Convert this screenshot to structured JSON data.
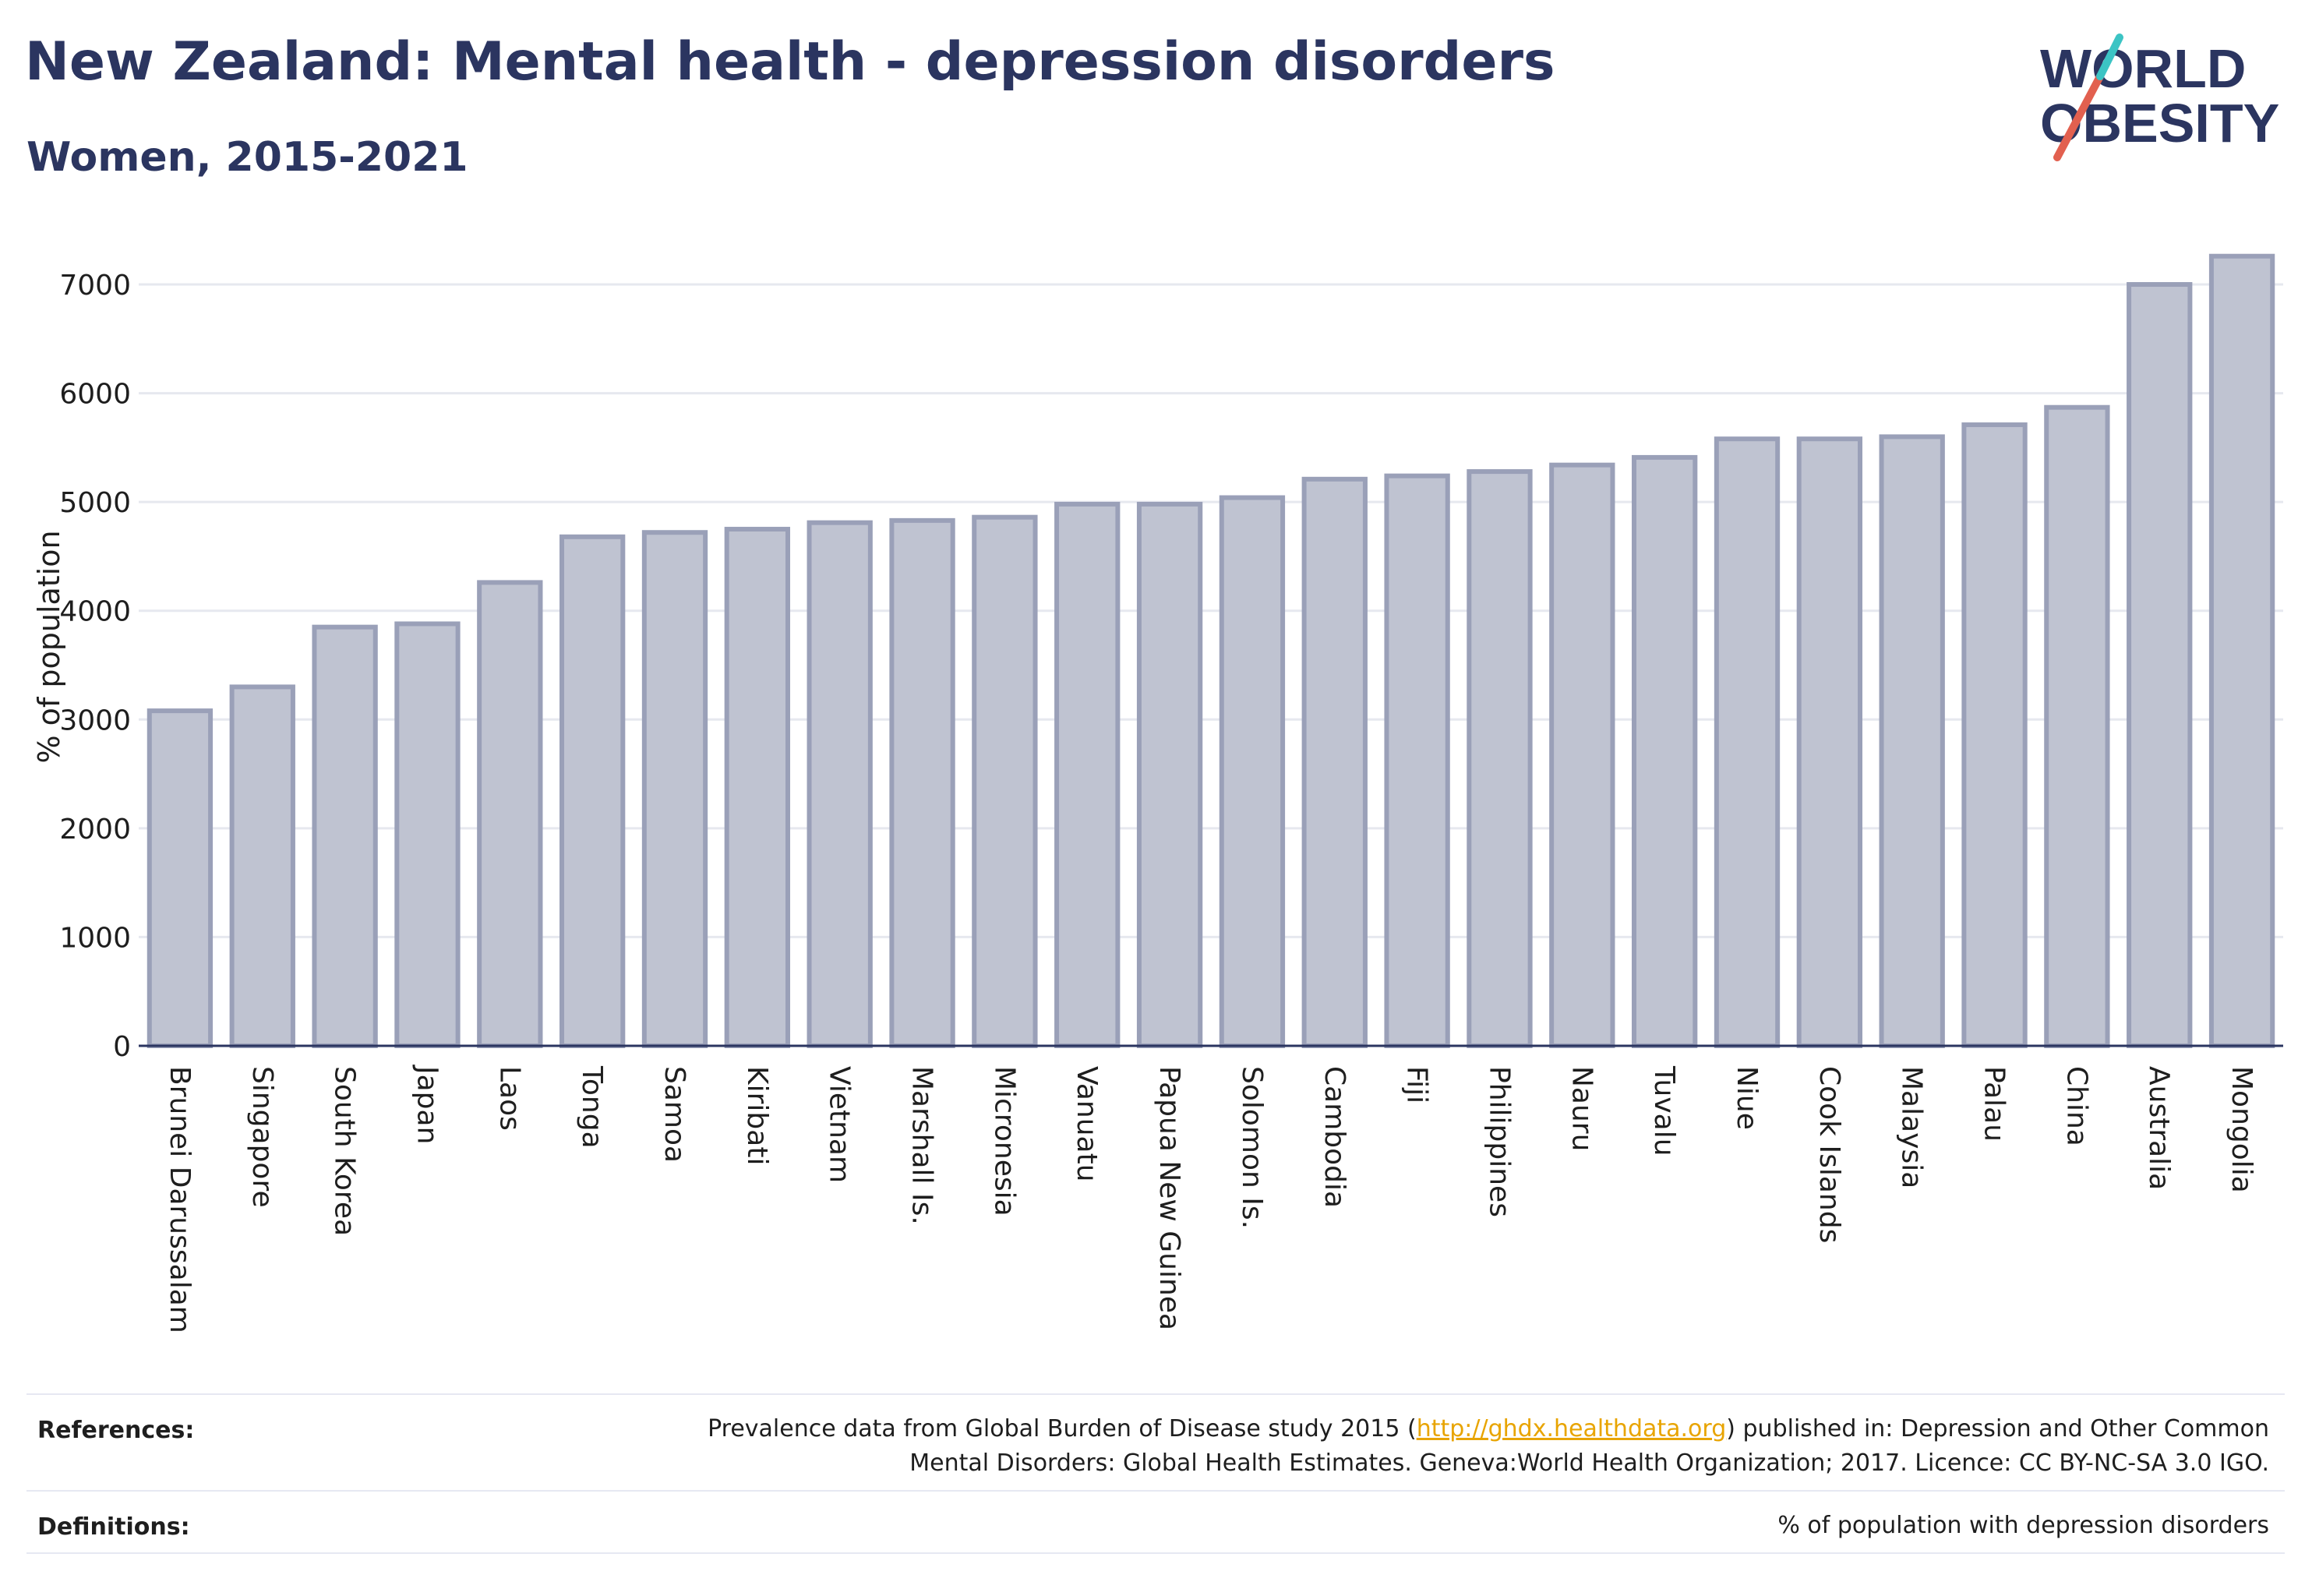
{
  "header": {
    "title": "New Zealand: Mental health - depression disorders",
    "subtitle": "Women, 2015-2021"
  },
  "logo": {
    "line1": "WORLD",
    "line2": "OBESITY",
    "colors": {
      "text": "#2b3560",
      "slash_red": "#e2604f",
      "slash_teal": "#3cc4c4"
    }
  },
  "chart_data": {
    "type": "bar",
    "title": "",
    "xlabel": "",
    "ylabel": "% of population",
    "ylim": [
      0,
      7300
    ],
    "yticks": [
      0,
      1000,
      2000,
      3000,
      4000,
      5000,
      6000,
      7000
    ],
    "grid": true,
    "categories": [
      "Brunei Darussalam",
      "Singapore",
      "South Korea",
      "Japan",
      "Laos",
      "Tonga",
      "Samoa",
      "Kiribati",
      "Vietnam",
      "Marshall Is.",
      "Micronesia",
      "Vanuatu",
      "Papua New Guinea",
      "Solomon Is.",
      "Cambodia",
      "Fiji",
      "Philippines",
      "Nauru",
      "Tuvalu",
      "Niue",
      "Cook Islands",
      "Malaysia",
      "Palau",
      "China",
      "Australia",
      "Mongolia"
    ],
    "values": [
      3080,
      3300,
      3850,
      3880,
      4260,
      4680,
      4720,
      4750,
      4810,
      4830,
      4860,
      4980,
      4980,
      5040,
      5210,
      5240,
      5280,
      5340,
      5410,
      5580,
      5580,
      5600,
      5710,
      5870,
      7000,
      7260
    ],
    "colors": {
      "bar_fill": "#bfc3d1",
      "bar_stroke": "#9aa0b8",
      "grid": "#e6e8ef",
      "axis": "#2b3560",
      "text": "#1e1e1e"
    }
  },
  "footer": {
    "references_label": "References:",
    "references_line1_pre": "Prevalence data from Global Burden of Disease study 2015 (",
    "references_link": "http://ghdx.healthdata.org",
    "references_line1_post": ") published in: Depression and Other Common",
    "references_line2": "Mental Disorders: Global Health Estimates. Geneva:World Health Organization; 2017. Licence: CC BY-NC-SA 3.0 IGO.",
    "definitions_label": "Definitions:",
    "definitions_text": "% of population with depression disorders"
  }
}
